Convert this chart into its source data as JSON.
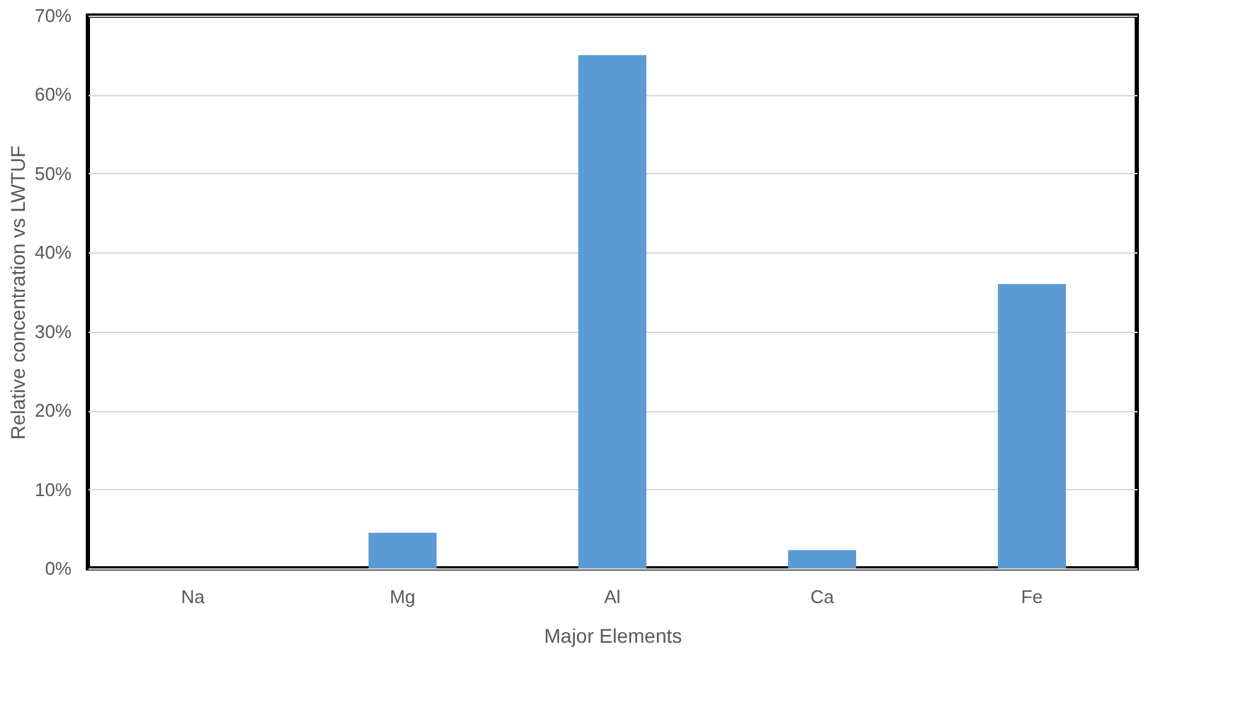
{
  "chart_data": {
    "type": "bar",
    "xlabel": "Major Elements",
    "ylabel": "Relative concentration vs LWTUF",
    "categories": [
      "Na",
      "Mg",
      "Al",
      "Ca",
      "Fe"
    ],
    "series": [
      {
        "color": "#5b9bd5",
        "values": [
          0,
          4.5,
          65,
          2.3,
          36
        ]
      }
    ],
    "ylim": [
      0,
      70
    ],
    "yticks": [
      {
        "value": 0,
        "label": "0%"
      },
      {
        "value": 10,
        "label": "10%"
      },
      {
        "value": 20,
        "label": "20%"
      },
      {
        "value": 30,
        "label": "30%"
      },
      {
        "value": 40,
        "label": "40%"
      },
      {
        "value": 50,
        "label": "50%"
      },
      {
        "value": 60,
        "label": "60%"
      },
      {
        "value": 70,
        "label": "70%"
      }
    ],
    "grid": "y"
  }
}
